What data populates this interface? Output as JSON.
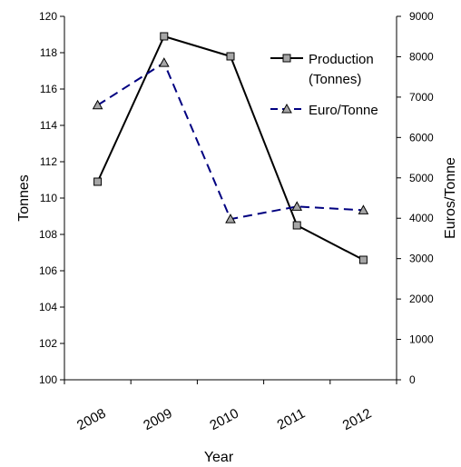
{
  "chart_data": {
    "type": "line",
    "title": "",
    "xlabel": "Year",
    "ylabel_left": "Tonnes",
    "ylabel_right": "Euros/Tonne",
    "categories": [
      "2008",
      "2009",
      "2010",
      "2011",
      "2012"
    ],
    "y_left": {
      "min": 100,
      "max": 120,
      "step": 2,
      "ticks": [
        "100",
        "102",
        "104",
        "106",
        "108",
        "110",
        "112",
        "114",
        "116",
        "118",
        "120"
      ]
    },
    "y_right": {
      "min": 0,
      "max": 9000,
      "step": 1000,
      "ticks": [
        "0",
        "1000",
        "2000",
        "3000",
        "4000",
        "5000",
        "6000",
        "7000",
        "8000",
        "9000"
      ]
    },
    "series": [
      {
        "name": "Production (Tonnes)",
        "legend_lines": [
          "Production",
          "(Tonnes)"
        ],
        "axis": "left",
        "marker": "square",
        "line": "solid",
        "color": "#000000",
        "marker_color": "#a6a6a6",
        "values": [
          110.9,
          118.9,
          117.8,
          108.5,
          106.6
        ]
      },
      {
        "name": "Euro/Tonne",
        "legend_lines": [
          "Euro/Tonne"
        ],
        "axis": "right",
        "marker": "triangle",
        "line": "dashed",
        "color": "#000080",
        "marker_color": "#a6a6a6",
        "values": [
          6800,
          7850,
          3980,
          4290,
          4200
        ]
      }
    ],
    "legend_position": "top-right",
    "grid": false
  }
}
